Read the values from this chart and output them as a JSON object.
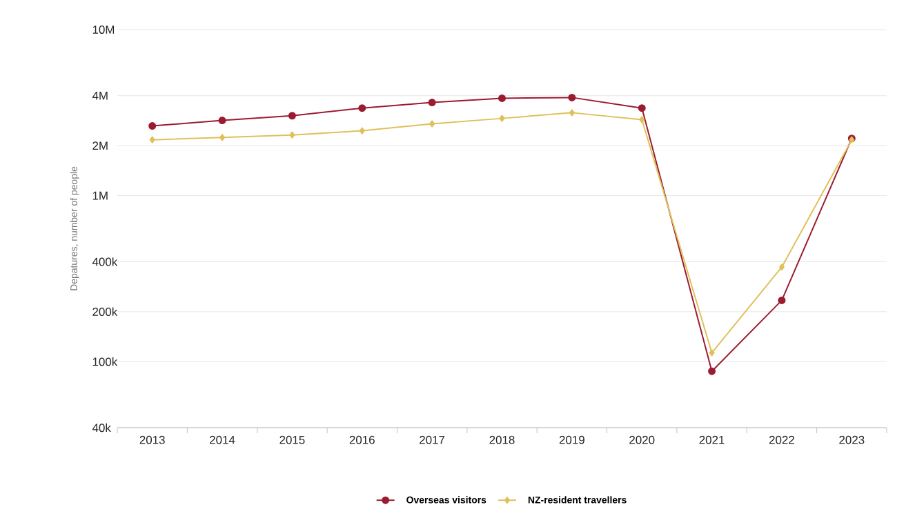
{
  "chart_data": {
    "type": "line",
    "ylabel": "Depatures, number of people",
    "categories": [
      "2013",
      "2014",
      "2015",
      "2016",
      "2017",
      "2018",
      "2019",
      "2020",
      "2021",
      "2022",
      "2023"
    ],
    "series": [
      {
        "name": "Overseas visitors",
        "color": "#9b1b30",
        "marker": "circle",
        "values": [
          2630000,
          2840000,
          3030000,
          3370000,
          3640000,
          3860000,
          3900000,
          3370000,
          87500,
          234000,
          2210000
        ]
      },
      {
        "name": "NZ-resident travellers",
        "color": "#e0c05a",
        "marker": "diamond",
        "values": [
          2170000,
          2240000,
          2320000,
          2460000,
          2710000,
          2920000,
          3160000,
          2870000,
          113000,
          371000,
          2170000
        ]
      }
    ],
    "log": true,
    "ylim": [
      40000,
      10000000
    ],
    "yticks": [
      {
        "value": 40000,
        "label": "40k"
      },
      {
        "value": 100000,
        "label": "100k"
      },
      {
        "value": 200000,
        "label": "200k"
      },
      {
        "value": 400000,
        "label": "400k"
      },
      {
        "value": 1000000,
        "label": "1M"
      },
      {
        "value": 2000000,
        "label": "2M"
      },
      {
        "value": 4000000,
        "label": "4M"
      },
      {
        "value": 10000000,
        "label": "10M"
      }
    ],
    "grid": "y",
    "legend": "bottom",
    "line_style": "solid"
  }
}
